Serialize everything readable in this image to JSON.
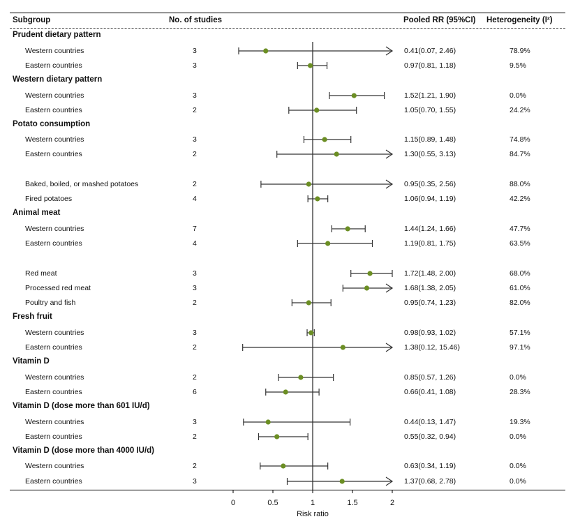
{
  "headers": {
    "subgroup": "Subgroup",
    "studies": "No. of studies",
    "pooled": "Pooled RR (95%CI)",
    "heterogeneity": "Heterogeneity (I²)"
  },
  "colors": {
    "point": "#6b8e23",
    "ci_line": "#333333",
    "ref_line": "#333333",
    "header_rule": "#000000"
  },
  "chart_data": {
    "type": "forest",
    "title": "",
    "xlabel": "Risk ratio",
    "xlim": [
      0,
      2
    ],
    "xticks": [
      0,
      0.5,
      1,
      1.5,
      2
    ],
    "xtick_labels": [
      "0",
      "0.5",
      "1",
      "1.5",
      "2"
    ],
    "reference_value": 1,
    "groups": [
      {
        "label": "Prudent dietary pattern",
        "rows": [
          {
            "label": "Western countries",
            "studies": "3",
            "rr": 0.41,
            "lo": 0.07,
            "hi": 2.46,
            "ci_text": "0.41(0.07, 2.46)",
            "i2": "78.9%"
          },
          {
            "label": "Eastern countries",
            "studies": "3",
            "rr": 0.97,
            "lo": 0.81,
            "hi": 1.18,
            "ci_text": "0.97(0.81, 1.18)",
            "i2": "9.5%"
          }
        ]
      },
      {
        "label": "Western dietary pattern",
        "rows": [
          {
            "label": "Western countries",
            "studies": "3",
            "rr": 1.52,
            "lo": 1.21,
            "hi": 1.9,
            "ci_text": "1.52(1.21, 1.90)",
            "i2": "0.0%"
          },
          {
            "label": "Eastern countries",
            "studies": "2",
            "rr": 1.05,
            "lo": 0.7,
            "hi": 1.55,
            "ci_text": "1.05(0.70, 1.55)",
            "i2": "24.2%"
          }
        ]
      },
      {
        "label": "Potato consumption",
        "rows": [
          {
            "label": "Western countries",
            "studies": "3",
            "rr": 1.15,
            "lo": 0.89,
            "hi": 1.48,
            "ci_text": "1.15(0.89, 1.48)",
            "i2": "74.8%"
          },
          {
            "label": "Eastern countries",
            "studies": "2",
            "rr": 1.3,
            "lo": 0.55,
            "hi": 3.13,
            "ci_text": "1.30(0.55, 3.13)",
            "i2": "84.7%"
          },
          {
            "label": "Baked, boiled, or mashed potatoes",
            "studies": "2",
            "rr": 0.95,
            "lo": 0.35,
            "hi": 2.56,
            "ci_text": "0.95(0.35, 2.56)",
            "i2": "88.0%"
          },
          {
            "label": "Fired potatoes",
            "studies": "4",
            "rr": 1.06,
            "lo": 0.94,
            "hi": 1.19,
            "ci_text": "1.06(0.94, 1.19)",
            "i2": "42.2%"
          }
        ]
      },
      {
        "label": "Animal meat",
        "rows": [
          {
            "label": "Western countries",
            "studies": "7",
            "rr": 1.44,
            "lo": 1.24,
            "hi": 1.66,
            "ci_text": "1.44(1.24, 1.66)",
            "i2": "47.7%"
          },
          {
            "label": "Eastern countries",
            "studies": "4",
            "rr": 1.19,
            "lo": 0.81,
            "hi": 1.75,
            "ci_text": "1.19(0.81, 1.75)",
            "i2": "63.5%"
          },
          {
            "label": "Red meat",
            "studies": "3",
            "rr": 1.72,
            "lo": 1.48,
            "hi": 2.0,
            "ci_text": "1.72(1.48, 2.00)",
            "i2": "68.0%"
          },
          {
            "label": "Processed red meat",
            "studies": "3",
            "rr": 1.68,
            "lo": 1.38,
            "hi": 2.05,
            "ci_text": "1.68(1.38, 2.05)",
            "i2": "61.0%"
          },
          {
            "label": "Poultry and fish",
            "studies": "2",
            "rr": 0.95,
            "lo": 0.74,
            "hi": 1.23,
            "ci_text": "0.95(0.74, 1.23)",
            "i2": "82.0%"
          }
        ]
      },
      {
        "label": "Fresh fruit",
        "rows": [
          {
            "label": "Western countries",
            "studies": "3",
            "rr": 0.98,
            "lo": 0.93,
            "hi": 1.02,
            "ci_text": "0.98(0.93, 1.02)",
            "i2": "57.1%"
          },
          {
            "label": "Eastern countries",
            "studies": "2",
            "rr": 1.38,
            "lo": 0.12,
            "hi": 15.46,
            "ci_text": "1.38(0.12, 15.46)",
            "i2": "97.1%"
          }
        ]
      },
      {
        "label": "Vitamin D",
        "rows": [
          {
            "label": "Western countries",
            "studies": "2",
            "rr": 0.85,
            "lo": 0.57,
            "hi": 1.26,
            "ci_text": "0.85(0.57, 1.26)",
            "i2": "0.0%"
          },
          {
            "label": "Eastern countries",
            "studies": "6",
            "rr": 0.66,
            "lo": 0.41,
            "hi": 1.08,
            "ci_text": "0.66(0.41, 1.08)",
            "i2": "28.3%"
          }
        ]
      },
      {
        "label": "Vitamin D (dose more than 601 IU/d)",
        "rows": [
          {
            "label": "Western countries",
            "studies": "3",
            "rr": 0.44,
            "lo": 0.13,
            "hi": 1.47,
            "ci_text": "0.44(0.13, 1.47)",
            "i2": "19.3%"
          },
          {
            "label": "Eastern countries",
            "studies": "2",
            "rr": 0.55,
            "lo": 0.32,
            "hi": 0.94,
            "ci_text": "0.55(0.32, 0.94)",
            "i2": "0.0%"
          }
        ]
      },
      {
        "label": "Vitamin D (dose more than 4000 IU/d)",
        "rows": [
          {
            "label": "Western countries",
            "studies": "2",
            "rr": 0.63,
            "lo": 0.34,
            "hi": 1.19,
            "ci_text": "0.63(0.34, 1.19)",
            "i2": "0.0%"
          },
          {
            "label": "Eastern countries",
            "studies": "3",
            "rr": 1.37,
            "lo": 0.68,
            "hi": 2.78,
            "ci_text": "1.37(0.68, 2.78)",
            "i2": "0.0%"
          }
        ]
      }
    ]
  }
}
